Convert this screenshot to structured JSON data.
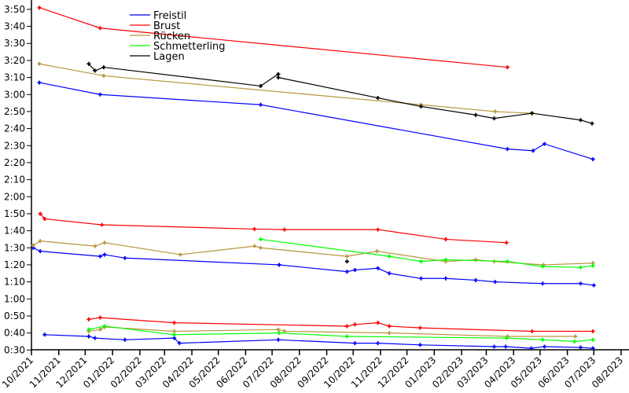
{
  "chart_data": {
    "type": "line",
    "title": "",
    "xlabel": "",
    "ylabel": "",
    "x_type": "date",
    "xlim": [
      "2021-10-01",
      "2023-08-01"
    ],
    "ylim_seconds": [
      30,
      230
    ],
    "x_tick_labels": [
      "10/2021",
      "11/2021",
      "12/2021",
      "01/2022",
      "02/2022",
      "03/2022",
      "04/2022",
      "05/2022",
      "06/2022",
      "07/2022",
      "08/2022",
      "09/2022",
      "10/2022",
      "11/2022",
      "12/2022",
      "01/2023",
      "02/2023",
      "03/2023",
      "04/2023",
      "05/2023",
      "06/2023",
      "07/2023",
      "08/2023"
    ],
    "y_tick_labels": [
      "0:30",
      "0:40",
      "0:50",
      "1:00",
      "1:10",
      "1:20",
      "1:30",
      "1:40",
      "1:50",
      "2:00",
      "2:10",
      "2:20",
      "2:30",
      "2:40",
      "2:50",
      "3:00",
      "3:10",
      "3:20",
      "3:30",
      "3:40",
      "3:50"
    ],
    "grid": false,
    "legend_position": "top-left",
    "series": [
      {
        "name": "Freistil",
        "color": "#0000ff",
        "lines": [
          [
            [
              "2021-10-16",
              39
            ],
            [
              "2021-12-05",
              38
            ],
            [
              "2021-12-12",
              37
            ],
            [
              "2022-01-15",
              36
            ],
            [
              "2022-03-12",
              37
            ],
            [
              "2022-03-18",
              34
            ],
            [
              "2022-07-08",
              36
            ],
            [
              "2022-10-03",
              34
            ],
            [
              "2022-10-29",
              34
            ],
            [
              "2022-12-16",
              33
            ],
            [
              "2023-03-10",
              32
            ],
            [
              "2023-03-23",
              32
            ],
            [
              "2023-04-21",
              31
            ],
            [
              "2023-05-06",
              32
            ],
            [
              "2023-06-16",
              31.5
            ],
            [
              "2023-06-30",
              31
            ]
          ],
          [
            [
              "2021-10-03",
              90
            ],
            [
              "2021-10-11",
              88
            ],
            [
              "2021-12-18",
              85
            ],
            [
              "2021-12-23",
              86
            ],
            [
              "2022-01-15",
              84
            ],
            [
              "2022-07-09",
              80
            ],
            [
              "2022-09-24",
              76
            ],
            [
              "2022-10-03",
              77
            ],
            [
              "2022-10-29",
              78
            ],
            [
              "2022-11-11",
              75
            ],
            [
              "2022-12-17",
              72
            ],
            [
              "2023-01-14",
              72
            ],
            [
              "2023-02-17",
              71
            ],
            [
              "2023-03-11",
              70
            ],
            [
              "2023-05-04",
              69
            ],
            [
              "2023-06-16",
              69
            ],
            [
              "2023-07-01",
              68
            ]
          ],
          [
            [
              "2021-10-10",
              187
            ],
            [
              "2021-12-18",
              180
            ],
            [
              "2022-06-18",
              174
            ],
            [
              "2023-03-25",
              148
            ],
            [
              "2023-04-23",
              147
            ],
            [
              "2023-05-06",
              151
            ],
            [
              "2023-06-30",
              142
            ]
          ]
        ]
      },
      {
        "name": "Brust",
        "color": "#ff0000",
        "lines": [
          [
            [
              "2021-12-05",
              48
            ],
            [
              "2021-12-18",
              49
            ],
            [
              "2022-03-12",
              46
            ],
            [
              "2022-09-24",
              44
            ],
            [
              "2022-10-03",
              45
            ],
            [
              "2022-10-29",
              46
            ],
            [
              "2022-11-11",
              44
            ],
            [
              "2022-12-16",
              43
            ],
            [
              "2023-04-22",
              41
            ],
            [
              "2023-06-30",
              41
            ]
          ],
          [
            [
              "2021-10-11",
              110
            ],
            [
              "2021-10-16",
              107
            ],
            [
              "2021-12-20",
              103.5
            ],
            [
              "2022-06-11",
              101
            ],
            [
              "2022-07-15",
              100.7
            ],
            [
              "2022-10-29",
              100.7
            ],
            [
              "2023-01-14",
              95
            ],
            [
              "2023-03-24",
              93
            ]
          ],
          [
            [
              "2021-10-10",
              231
            ],
            [
              "2021-12-18",
              219
            ],
            [
              "2023-03-25",
              196
            ]
          ]
        ]
      },
      {
        "name": "Rücken",
        "color": "#b8963c",
        "lines": [
          [
            [
              "2021-12-05",
              41
            ],
            [
              "2021-12-18",
              42
            ],
            [
              "2021-12-23",
              43.5
            ],
            [
              "2022-03-12",
              41
            ],
            [
              "2022-07-08",
              42
            ],
            [
              "2022-07-15",
              41
            ],
            [
              "2022-11-11",
              40
            ],
            [
              "2023-03-25",
              38
            ],
            [
              "2023-06-10",
              38
            ]
          ],
          [
            [
              "2021-10-03",
              91.5
            ],
            [
              "2021-10-11",
              94
            ],
            [
              "2021-12-12",
              91
            ],
            [
              "2021-12-23",
              93
            ],
            [
              "2022-03-19",
              86
            ],
            [
              "2022-06-11",
              91
            ],
            [
              "2022-06-18",
              90
            ],
            [
              "2022-09-24",
              85
            ],
            [
              "2022-10-28",
              88
            ],
            [
              "2023-01-14",
              82
            ],
            [
              "2023-02-17",
              83
            ],
            [
              "2023-03-10",
              82
            ],
            [
              "2023-05-05",
              80
            ],
            [
              "2023-06-30",
              81
            ]
          ],
          [
            [
              "2021-10-10",
              198
            ],
            [
              "2021-12-22",
              191
            ],
            [
              "2022-12-17",
              174
            ],
            [
              "2023-03-11",
              170
            ],
            [
              "2023-04-21",
              169
            ]
          ]
        ]
      },
      {
        "name": "Schmetterling",
        "color": "#00ff00",
        "lines": [
          [
            [
              "2021-12-05",
              42
            ],
            [
              "2021-12-23",
              44
            ],
            [
              "2022-03-12",
              39
            ],
            [
              "2022-07-09",
              40
            ],
            [
              "2022-09-24",
              38
            ],
            [
              "2023-03-24",
              37
            ],
            [
              "2023-05-04",
              36
            ],
            [
              "2023-06-09",
              35
            ],
            [
              "2023-06-30",
              36
            ]
          ],
          [
            [
              "2022-06-18",
              95
            ],
            [
              "2022-11-11",
              85
            ],
            [
              "2022-12-17",
              82
            ],
            [
              "2023-01-14",
              83
            ],
            [
              "2023-03-25",
              82
            ],
            [
              "2023-05-04",
              79
            ],
            [
              "2023-06-16",
              78.5
            ],
            [
              "2023-06-30",
              79.5
            ]
          ]
        ]
      },
      {
        "name": "Lagen",
        "color": "#000000",
        "lines": [
          [
            [
              "2022-09-24",
              82
            ]
          ],
          [
            [
              "2021-12-05",
              198
            ],
            [
              "2021-12-12",
              194
            ],
            [
              "2021-12-22",
              196
            ],
            [
              "2022-06-18",
              185
            ],
            [
              "2022-07-08",
              192
            ],
            [
              "2022-07-08",
              190
            ],
            [
              "2022-10-29",
              178
            ],
            [
              "2022-12-17",
              173
            ],
            [
              "2023-02-17",
              168
            ],
            [
              "2023-03-10",
              166
            ],
            [
              "2023-04-22",
              169
            ],
            [
              "2023-06-16",
              165
            ],
            [
              "2023-06-29",
              163
            ]
          ]
        ]
      }
    ]
  }
}
